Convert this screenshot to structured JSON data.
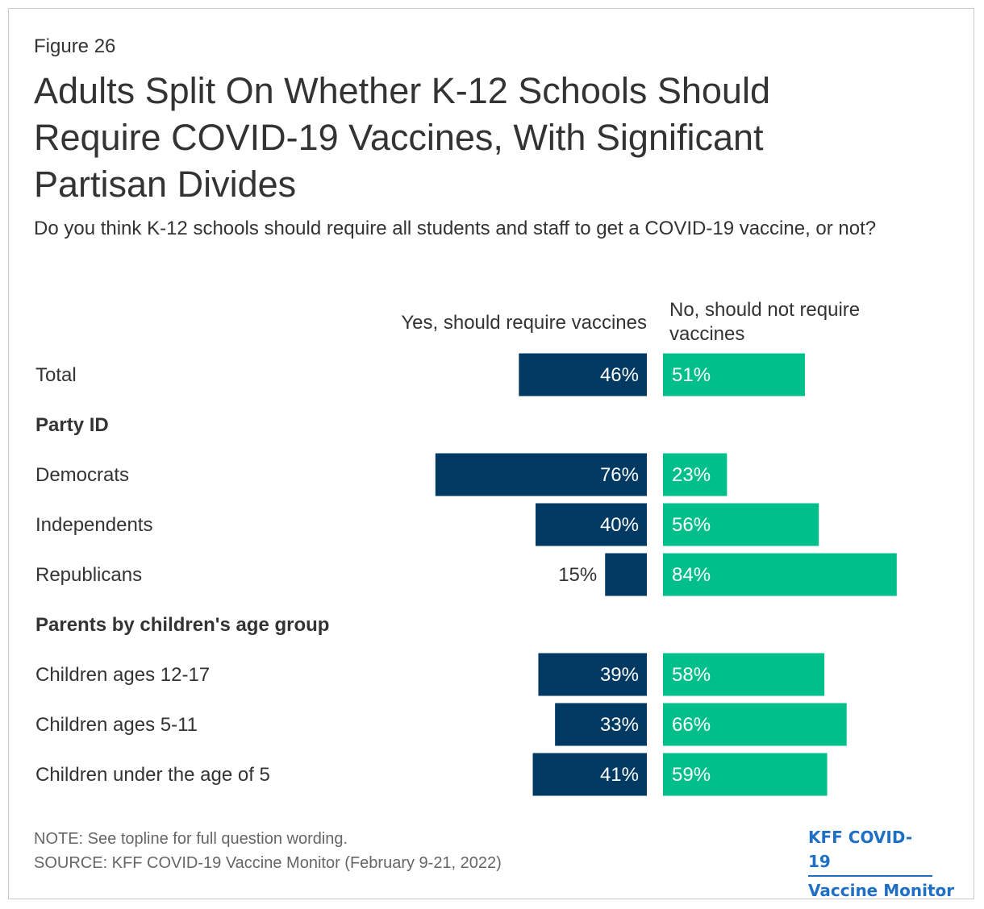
{
  "figure_label": "Figure 26",
  "title": "Adults Split On Whether K-12 Schools Should Require COVID-19 Vaccines, With Significant Partisan Divides",
  "subtitle": "Do you think K-12 schools should require all students and staff to get a COVID-19 vaccine, or not?",
  "note": "NOTE: See topline for full question wording.",
  "source": "SOURCE: KFF COVID-19 Vaccine Monitor (February 9-21, 2022)",
  "brand": {
    "line1": "KFF COVID-19",
    "line2": "Vaccine Monitor"
  },
  "colors": {
    "yes": "#003a63",
    "no": "#00bf8a",
    "brand": "#1f6fc5"
  },
  "chart_data": {
    "type": "bar",
    "orientation": "horizontal-diverging",
    "series": [
      {
        "name": "Yes, should require vaccines",
        "color": "#003a63"
      },
      {
        "name": "No, should not require vaccines",
        "color": "#00bf8a"
      }
    ],
    "rows": [
      {
        "kind": "item",
        "label": "Total",
        "yes": 46,
        "no": 51
      },
      {
        "kind": "header",
        "label": "Party ID"
      },
      {
        "kind": "item",
        "label": "Democrats",
        "yes": 76,
        "no": 23
      },
      {
        "kind": "item",
        "label": "Independents",
        "yes": 40,
        "no": 56
      },
      {
        "kind": "item",
        "label": "Republicans",
        "yes": 15,
        "no": 84
      },
      {
        "kind": "header",
        "label": "Parents by children's age group"
      },
      {
        "kind": "item",
        "label": "Children ages 12-17",
        "yes": 39,
        "no": 58
      },
      {
        "kind": "item",
        "label": "Children ages 5-11",
        "yes": 33,
        "no": 66
      },
      {
        "kind": "item",
        "label": "Children under the age of 5",
        "yes": 41,
        "no": 59
      }
    ],
    "value_suffix": "%"
  }
}
